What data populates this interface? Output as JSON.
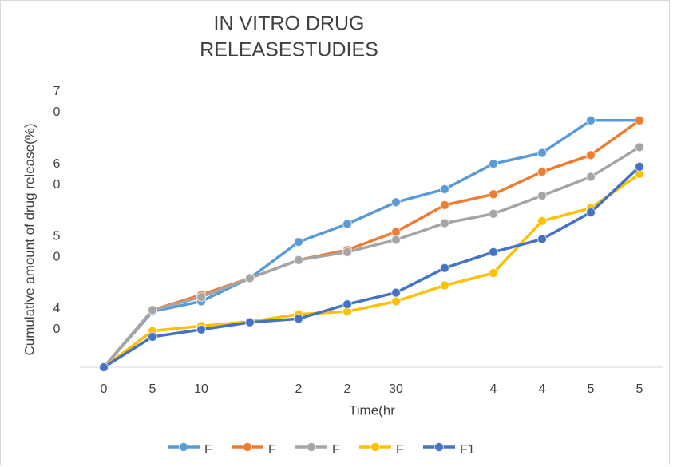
{
  "chart_data": {
    "type": "line",
    "title": [
      "IN VITRO DRUG",
      "RELEASESTUDIES"
    ],
    "x_label": "Time(hr",
    "y_label": "Cumulative amount of drug release(%)",
    "categories": [
      "0",
      "5",
      "10",
      null,
      "2",
      "2",
      "30",
      null,
      "4",
      "4",
      "5",
      "5"
    ],
    "ylim": [
      33.4,
      72
    ],
    "yticks": [
      40,
      50,
      60,
      70
    ],
    "grid": false,
    "legend": "bottom",
    "series": [
      {
        "name": "F",
        "color": "#5b9bd5",
        "values": [
          33.4,
          41.1,
          42.5,
          45.7,
          50.7,
          53.2,
          56.2,
          58.0,
          61.5,
          63.0,
          67.5,
          67.5
        ]
      },
      {
        "name": "F",
        "color": "#ed7d31",
        "values": [
          33.4,
          41.3,
          43.4,
          45.7,
          48.2,
          49.6,
          52.1,
          55.8,
          57.3,
          60.4,
          62.7,
          67.5
        ]
      },
      {
        "name": "F",
        "color": "#a5a5a5",
        "values": [
          33.4,
          41.3,
          43.1,
          45.7,
          48.2,
          49.3,
          51.0,
          53.3,
          54.6,
          57.1,
          59.7,
          63.8
        ]
      },
      {
        "name": "F",
        "color": "#ffc000",
        "values": [
          33.4,
          38.4,
          39.1,
          39.7,
          40.7,
          41.1,
          42.5,
          44.7,
          46.4,
          53.6,
          55.4,
          60.1
        ]
      },
      {
        "name": "F1",
        "color": "#4472c4",
        "values": [
          33.4,
          37.6,
          38.6,
          39.6,
          40.1,
          42.1,
          43.7,
          47.1,
          49.3,
          51.1,
          54.8,
          61.1
        ]
      }
    ]
  }
}
